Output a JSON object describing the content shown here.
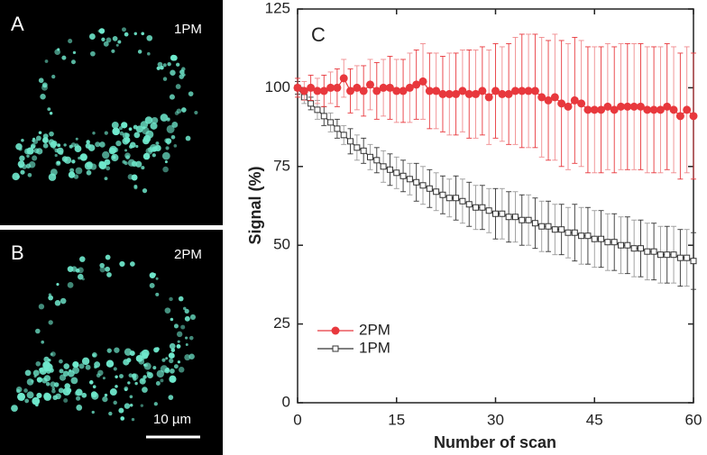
{
  "panel_a": {
    "label": "A",
    "caption": "1PM"
  },
  "panel_b": {
    "label": "B",
    "caption": "2PM",
    "scale_bar": "10 µm"
  },
  "chart_data": {
    "type": "line",
    "panel_label": "C",
    "x_label": "Number of scan",
    "y_label": "Signal (%)",
    "x": [
      0,
      1,
      2,
      3,
      4,
      5,
      6,
      7,
      8,
      9,
      10,
      11,
      12,
      13,
      14,
      15,
      16,
      17,
      18,
      19,
      20,
      21,
      22,
      23,
      24,
      25,
      26,
      27,
      28,
      29,
      30,
      31,
      32,
      33,
      34,
      35,
      36,
      37,
      38,
      39,
      40,
      41,
      42,
      43,
      44,
      45,
      46,
      47,
      48,
      49,
      50,
      51,
      52,
      53,
      54,
      55,
      56,
      57,
      58,
      59,
      60
    ],
    "xlim": [
      0,
      60
    ],
    "xticks": [
      0,
      15,
      30,
      45,
      60
    ],
    "ylim": [
      0,
      125
    ],
    "yticks": [
      0,
      25,
      50,
      75,
      100,
      125
    ],
    "legend": "lower left",
    "series": [
      {
        "name": "2PM",
        "color": "#e8383d",
        "marker": "circle",
        "values": [
          100,
          99,
          100,
          99,
          99,
          100,
          100,
          103,
          99,
          100,
          99,
          101,
          99,
          100,
          100,
          99,
          99,
          100,
          101,
          102,
          99,
          99,
          98,
          98,
          98,
          99,
          98,
          98,
          99,
          97,
          99,
          98,
          98,
          99,
          99,
          99,
          99,
          97,
          96,
          97,
          95,
          94,
          96,
          95,
          93,
          93,
          93,
          94,
          93,
          94,
          94,
          94,
          94,
          93,
          93,
          93,
          94,
          93,
          91,
          93,
          91
        ],
        "errors": [
          3,
          3,
          4,
          4,
          5,
          5,
          6,
          6,
          7,
          7,
          8,
          8,
          9,
          9,
          10,
          10,
          10,
          11,
          11,
          12,
          12,
          12,
          12,
          13,
          13,
          13,
          14,
          14,
          14,
          15,
          15,
          15,
          16,
          17,
          18,
          18,
          18,
          19,
          19,
          20,
          20,
          20,
          20,
          20,
          20,
          20,
          20,
          20,
          20,
          20,
          20,
          20,
          20,
          20,
          20,
          20,
          20,
          20,
          20,
          20,
          20
        ]
      },
      {
        "name": "1PM",
        "color": "#333333",
        "marker": "square",
        "values": [
          100,
          97,
          95,
          93,
          91,
          89,
          87,
          85,
          83,
          81,
          80,
          78,
          77,
          75,
          74,
          73,
          72,
          71,
          70,
          69,
          68,
          67,
          66,
          65,
          65,
          64,
          63,
          62,
          62,
          61,
          60,
          60,
          59,
          59,
          58,
          58,
          57,
          56,
          56,
          55,
          55,
          54,
          54,
          53,
          53,
          52,
          52,
          51,
          51,
          50,
          50,
          49,
          49,
          48,
          48,
          47,
          47,
          47,
          46,
          46,
          45
        ],
        "errors": [
          2,
          2,
          2,
          3,
          3,
          3,
          3,
          3,
          4,
          4,
          4,
          4,
          4,
          5,
          5,
          5,
          5,
          5,
          6,
          6,
          6,
          6,
          6,
          6,
          7,
          7,
          7,
          7,
          7,
          7,
          8,
          8,
          8,
          8,
          8,
          8,
          8,
          8,
          8,
          8,
          8,
          8,
          9,
          9,
          9,
          9,
          9,
          9,
          9,
          9,
          9,
          9,
          9,
          9,
          9,
          9,
          9,
          9,
          9,
          9,
          9
        ]
      }
    ]
  }
}
